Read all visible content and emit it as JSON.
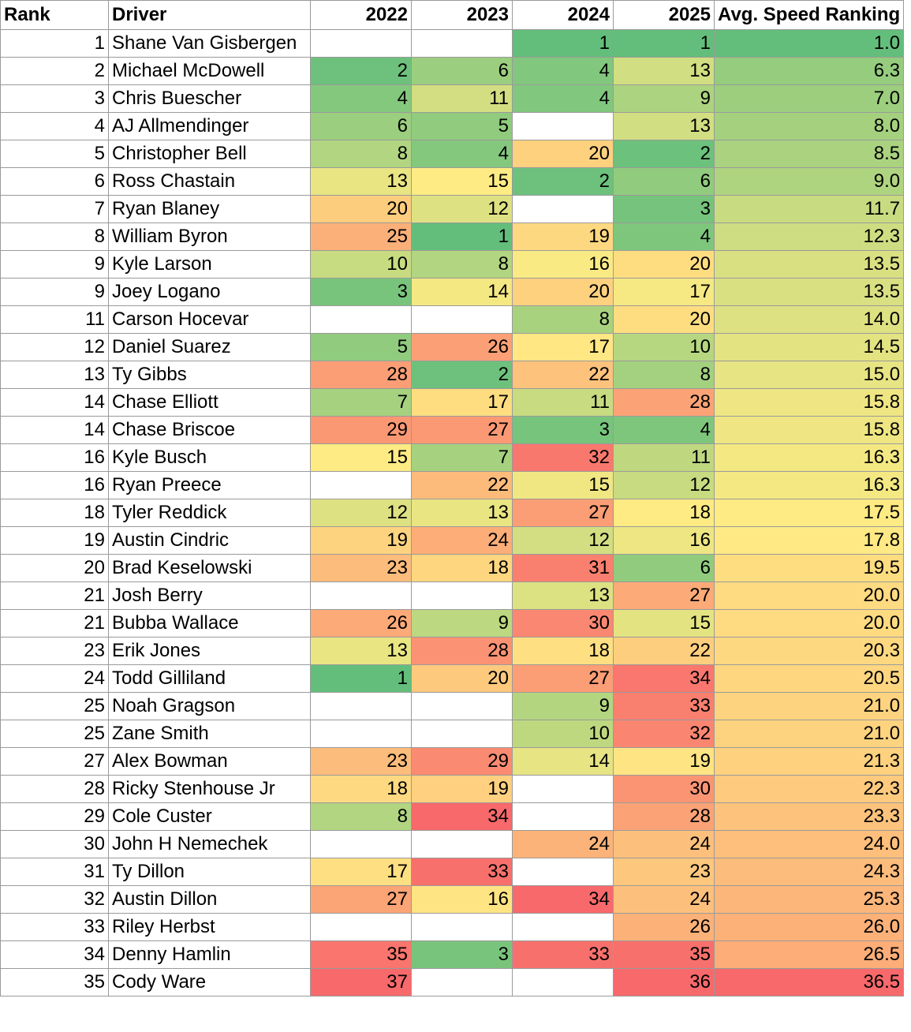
{
  "chart_data": {
    "type": "table",
    "columns": [
      "Rank",
      "Driver",
      "2022",
      "2023",
      "2024",
      "2025",
      "Avg. Speed Ranking"
    ],
    "rows": [
      {
        "rank": "1",
        "driver": "Shane Van Gisbergen",
        "y2022": "",
        "y2023": "",
        "y2024": "1",
        "y2025": "1",
        "avg": "1.0"
      },
      {
        "rank": "2",
        "driver": "Michael McDowell",
        "y2022": "2",
        "y2023": "6",
        "y2024": "4",
        "y2025": "13",
        "avg": "6.3"
      },
      {
        "rank": "3",
        "driver": "Chris Buescher",
        "y2022": "4",
        "y2023": "11",
        "y2024": "4",
        "y2025": "9",
        "avg": "7.0"
      },
      {
        "rank": "4",
        "driver": "AJ Allmendinger",
        "y2022": "6",
        "y2023": "5",
        "y2024": "",
        "y2025": "13",
        "avg": "8.0"
      },
      {
        "rank": "5",
        "driver": "Christopher Bell",
        "y2022": "8",
        "y2023": "4",
        "y2024": "20",
        "y2025": "2",
        "avg": "8.5"
      },
      {
        "rank": "6",
        "driver": "Ross Chastain",
        "y2022": "13",
        "y2023": "15",
        "y2024": "2",
        "y2025": "6",
        "avg": "9.0"
      },
      {
        "rank": "7",
        "driver": "Ryan Blaney",
        "y2022": "20",
        "y2023": "12",
        "y2024": "",
        "y2025": "3",
        "avg": "11.7"
      },
      {
        "rank": "8",
        "driver": "William Byron",
        "y2022": "25",
        "y2023": "1",
        "y2024": "19",
        "y2025": "4",
        "avg": "12.3"
      },
      {
        "rank": "9",
        "driver": "Kyle Larson",
        "y2022": "10",
        "y2023": "8",
        "y2024": "16",
        "y2025": "20",
        "avg": "13.5"
      },
      {
        "rank": "9",
        "driver": "Joey Logano",
        "y2022": "3",
        "y2023": "14",
        "y2024": "20",
        "y2025": "17",
        "avg": "13.5"
      },
      {
        "rank": "11",
        "driver": "Carson Hocevar",
        "y2022": "",
        "y2023": "",
        "y2024": "8",
        "y2025": "20",
        "avg": "14.0"
      },
      {
        "rank": "12",
        "driver": "Daniel Suarez",
        "y2022": "5",
        "y2023": "26",
        "y2024": "17",
        "y2025": "10",
        "avg": "14.5"
      },
      {
        "rank": "13",
        "driver": "Ty Gibbs",
        "y2022": "28",
        "y2023": "2",
        "y2024": "22",
        "y2025": "8",
        "avg": "15.0"
      },
      {
        "rank": "14",
        "driver": "Chase Elliott",
        "y2022": "7",
        "y2023": "17",
        "y2024": "11",
        "y2025": "28",
        "avg": "15.8"
      },
      {
        "rank": "14",
        "driver": "Chase Briscoe",
        "y2022": "29",
        "y2023": "27",
        "y2024": "3",
        "y2025": "4",
        "avg": "15.8"
      },
      {
        "rank": "16",
        "driver": "Kyle Busch",
        "y2022": "15",
        "y2023": "7",
        "y2024": "32",
        "y2025": "11",
        "avg": "16.3"
      },
      {
        "rank": "16",
        "driver": "Ryan Preece",
        "y2022": "",
        "y2023": "22",
        "y2024": "15",
        "y2025": "12",
        "avg": "16.3"
      },
      {
        "rank": "18",
        "driver": "Tyler Reddick",
        "y2022": "12",
        "y2023": "13",
        "y2024": "27",
        "y2025": "18",
        "avg": "17.5"
      },
      {
        "rank": "19",
        "driver": "Austin Cindric",
        "y2022": "19",
        "y2023": "24",
        "y2024": "12",
        "y2025": "16",
        "avg": "17.8"
      },
      {
        "rank": "20",
        "driver": "Brad Keselowski",
        "y2022": "23",
        "y2023": "18",
        "y2024": "31",
        "y2025": "6",
        "avg": "19.5"
      },
      {
        "rank": "21",
        "driver": "Josh Berry",
        "y2022": "",
        "y2023": "",
        "y2024": "13",
        "y2025": "27",
        "avg": "20.0"
      },
      {
        "rank": "21",
        "driver": "Bubba Wallace",
        "y2022": "26",
        "y2023": "9",
        "y2024": "30",
        "y2025": "15",
        "avg": "20.0"
      },
      {
        "rank": "23",
        "driver": "Erik Jones",
        "y2022": "13",
        "y2023": "28",
        "y2024": "18",
        "y2025": "22",
        "avg": "20.3"
      },
      {
        "rank": "24",
        "driver": "Todd Gilliland",
        "y2022": "1",
        "y2023": "20",
        "y2024": "27",
        "y2025": "34",
        "avg": "20.5"
      },
      {
        "rank": "25",
        "driver": "Noah Gragson",
        "y2022": "",
        "y2023": "",
        "y2024": "9",
        "y2025": "33",
        "avg": "21.0"
      },
      {
        "rank": "25",
        "driver": "Zane Smith",
        "y2022": "",
        "y2023": "",
        "y2024": "10",
        "y2025": "32",
        "avg": "21.0"
      },
      {
        "rank": "27",
        "driver": "Alex Bowman",
        "y2022": "23",
        "y2023": "29",
        "y2024": "14",
        "y2025": "19",
        "avg": "21.3"
      },
      {
        "rank": "28",
        "driver": "Ricky Stenhouse Jr",
        "y2022": "18",
        "y2023": "19",
        "y2024": "",
        "y2025": "30",
        "avg": "22.3"
      },
      {
        "rank": "29",
        "driver": "Cole Custer",
        "y2022": "8",
        "y2023": "34",
        "y2024": "",
        "y2025": "28",
        "avg": "23.3"
      },
      {
        "rank": "30",
        "driver": "John H Nemechek",
        "y2022": "",
        "y2023": "",
        "y2024": "24",
        "y2025": "24",
        "avg": "24.0"
      },
      {
        "rank": "31",
        "driver": "Ty Dillon",
        "y2022": "17",
        "y2023": "33",
        "y2024": "",
        "y2025": "23",
        "avg": "24.3"
      },
      {
        "rank": "32",
        "driver": "Austin Dillon",
        "y2022": "27",
        "y2023": "16",
        "y2024": "34",
        "y2025": "24",
        "avg": "25.3"
      },
      {
        "rank": "33",
        "driver": "Riley Herbst",
        "y2022": "",
        "y2023": "",
        "y2024": "",
        "y2025": "26",
        "avg": "26.0"
      },
      {
        "rank": "34",
        "driver": "Denny Hamlin",
        "y2022": "35",
        "y2023": "3",
        "y2024": "33",
        "y2025": "35",
        "avg": "26.5"
      },
      {
        "rank": "35",
        "driver": "Cody Ware",
        "y2022": "37",
        "y2023": "",
        "y2024": "",
        "y2025": "36",
        "avg": "36.5"
      }
    ],
    "color_scale": {
      "low": "#63be7b",
      "mid": "#ffeb84",
      "high": "#f8696b"
    }
  }
}
